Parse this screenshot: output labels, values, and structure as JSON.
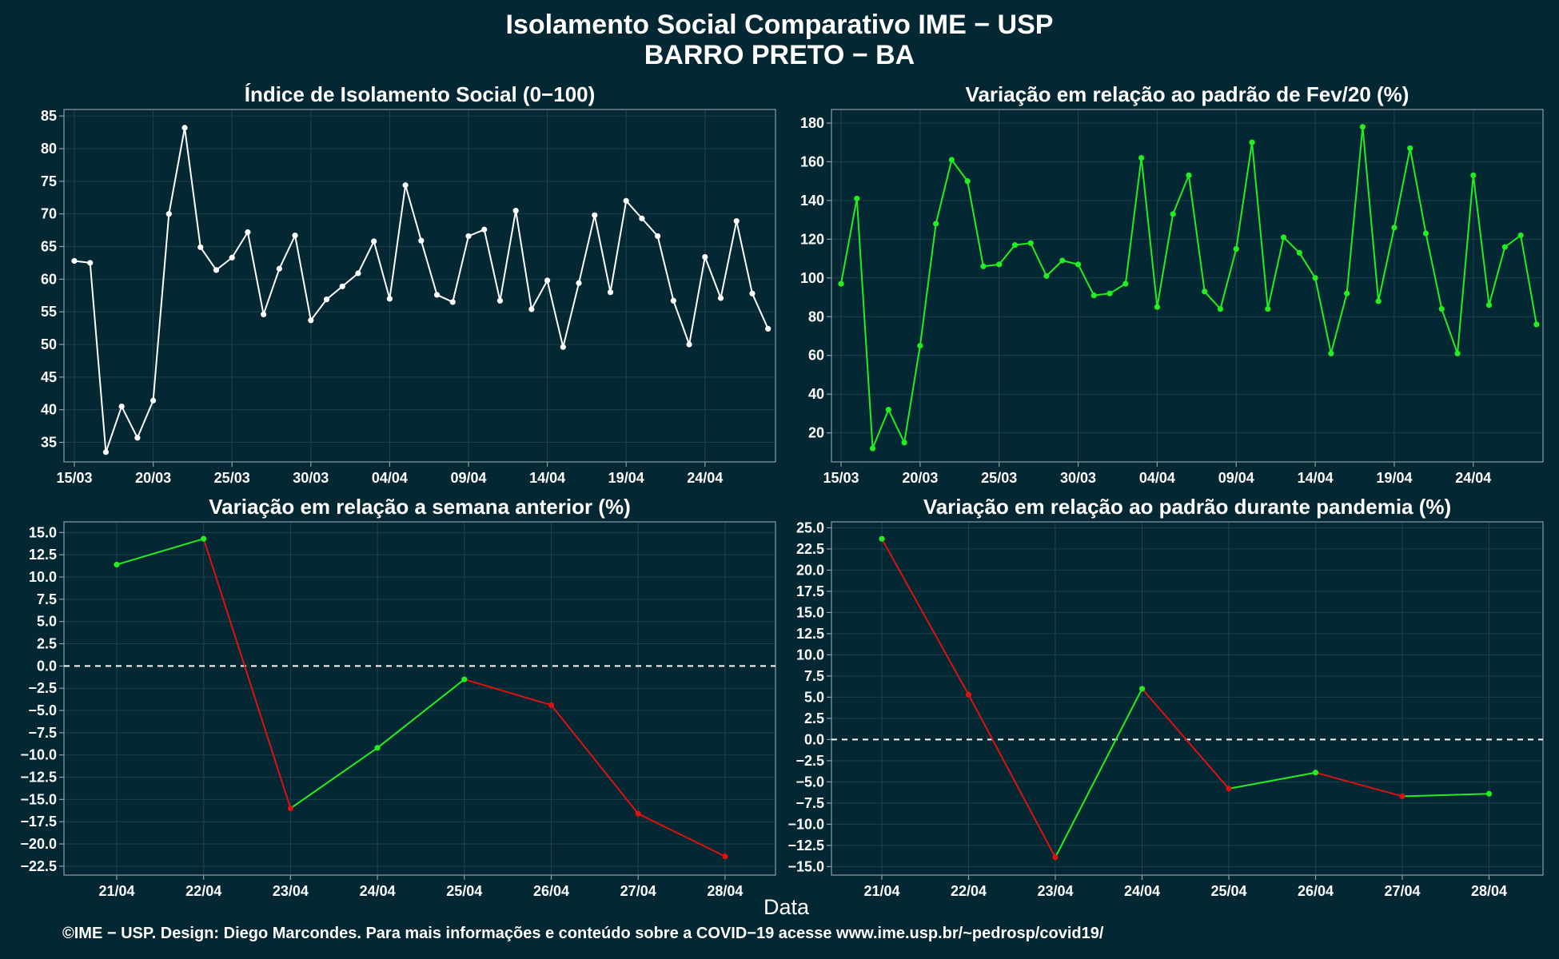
{
  "header": {
    "title": "Isolamento Social Comparativo IME − USP",
    "subtitle": "BARRO PRETO − BA"
  },
  "x_axis_title": "Data",
  "footer": "©IME − USP. Design: Diego Marcondes. Para mais informações e conteúdo sobre a COVID−19 acesse www.ime.usp.br/~pedrosp/covid19/",
  "colors": {
    "background": "#042833",
    "axis": "#8a9ea4",
    "grid": "#1d3f49",
    "white_series": "#ffffff",
    "increase": "#22ee22",
    "decrease": "#dd1111"
  },
  "chart_data": [
    {
      "id": "indice",
      "type": "line",
      "title": "Índice de Isolamento Social (0−100)",
      "x": [
        "15/03",
        "16/03",
        "17/03",
        "18/03",
        "19/03",
        "20/03",
        "21/03",
        "22/03",
        "23/03",
        "24/03",
        "25/03",
        "26/03",
        "27/03",
        "28/03",
        "29/03",
        "30/03",
        "31/03",
        "01/04",
        "02/04",
        "03/04",
        "04/04",
        "05/04",
        "06/04",
        "07/04",
        "08/04",
        "09/04",
        "10/04",
        "11/04",
        "12/04",
        "13/04",
        "14/04",
        "15/04",
        "16/04",
        "17/04",
        "18/04",
        "19/04",
        "20/04",
        "21/04",
        "22/04",
        "23/04",
        "24/04",
        "25/04",
        "26/04",
        "27/04",
        "28/04"
      ],
      "values": [
        62.8,
        62.5,
        33.5,
        40.5,
        35.7,
        41.4,
        70,
        83.2,
        64.9,
        61.4,
        63.3,
        67.2,
        54.6,
        61.6,
        66.7,
        53.7,
        56.9,
        58.9,
        60.9,
        65.8,
        57,
        74.4,
        65.9,
        57.6,
        56.5,
        66.6,
        67.6,
        56.7,
        70.5,
        55.4,
        59.8,
        49.6,
        59.4,
        69.8,
        58,
        72,
        69.3,
        66.6,
        56.7,
        50,
        63.4,
        57.1,
        68.9,
        57.8,
        52.4
      ],
      "x_tick_labels": [
        "15/03",
        "20/03",
        "25/03",
        "30/03",
        "04/04",
        "09/04",
        "14/04",
        "19/04",
        "24/04"
      ],
      "y_ticks": [
        35,
        40,
        45,
        50,
        55,
        60,
        65,
        70,
        75,
        80,
        85
      ],
      "ylim": [
        32,
        86
      ],
      "color": "#ffffff",
      "grid": true
    },
    {
      "id": "fev20",
      "type": "line",
      "title": "Variação em relação ao padrão de Fev/20 (%)",
      "x": [
        "15/03",
        "16/03",
        "17/03",
        "18/03",
        "19/03",
        "20/03",
        "21/03",
        "22/03",
        "23/03",
        "24/03",
        "25/03",
        "26/03",
        "27/03",
        "28/03",
        "29/03",
        "30/03",
        "31/03",
        "01/04",
        "02/04",
        "03/04",
        "04/04",
        "05/04",
        "06/04",
        "07/04",
        "08/04",
        "09/04",
        "10/04",
        "11/04",
        "12/04",
        "13/04",
        "14/04",
        "15/04",
        "16/04",
        "17/04",
        "18/04",
        "19/04",
        "20/04",
        "21/04",
        "22/04",
        "23/04",
        "24/04",
        "25/04",
        "26/04",
        "27/04",
        "28/04"
      ],
      "values": [
        97,
        141,
        12,
        32,
        15,
        65,
        128,
        161,
        150,
        106,
        107,
        117,
        118,
        101,
        109,
        107,
        91,
        92,
        97,
        162,
        85,
        133,
        153,
        93,
        84,
        115,
        170,
        84,
        121,
        113,
        100,
        61,
        92,
        178,
        88,
        126,
        167,
        123,
        84,
        61,
        153,
        86,
        116,
        122,
        76
      ],
      "x_tick_labels": [
        "15/03",
        "20/03",
        "25/03",
        "30/03",
        "04/04",
        "09/04",
        "14/04",
        "19/04",
        "24/04"
      ],
      "y_ticks": [
        20,
        40,
        60,
        80,
        100,
        120,
        140,
        160,
        180
      ],
      "ylim": [
        5,
        187
      ],
      "color": "#22ee22",
      "grid": true
    },
    {
      "id": "semana",
      "type": "line",
      "title": "Variação em relação a semana anterior (%)",
      "x": [
        "21/04",
        "22/04",
        "23/04",
        "24/04",
        "25/04",
        "26/04",
        "27/04",
        "28/04"
      ],
      "values": [
        11.4,
        14.3,
        -16,
        -9.2,
        -1.5,
        -4.4,
        -16.6,
        -21.4
      ],
      "y_ticks": [
        -22.5,
        -20,
        -17.5,
        -15,
        -12.5,
        -10,
        -7.5,
        -5,
        -2.5,
        0,
        2.5,
        5,
        7.5,
        10,
        12.5,
        15
      ],
      "y_tick_labels": [
        "−22.5",
        "−20.0",
        "−17.5",
        "−15.0",
        "−12.5",
        "−10.0",
        "−7.5",
        "−5.0",
        "−2.5",
        "0.0",
        "2.5",
        "5.0",
        "7.5",
        "10.0",
        "12.5",
        "15.0"
      ],
      "ylim": [
        -23.5,
        16.2
      ],
      "zero_line": true,
      "grid": true
    },
    {
      "id": "pandemia",
      "type": "line",
      "title": "Variação em relação ao padrão durante pandemia (%)",
      "x": [
        "21/04",
        "22/04",
        "23/04",
        "24/04",
        "25/04",
        "26/04",
        "27/04",
        "28/04"
      ],
      "values": [
        23.7,
        5.3,
        -13.9,
        6,
        -5.8,
        -3.9,
        -6.7,
        -6.4
      ],
      "y_ticks": [
        -15,
        -12.5,
        -10,
        -7.5,
        -5,
        -2.5,
        0,
        2.5,
        5,
        7.5,
        10,
        12.5,
        15,
        17.5,
        20,
        22.5,
        25
      ],
      "y_tick_labels": [
        "−15.0",
        "−12.5",
        "−10.0",
        "−7.5",
        "−5.0",
        "−2.5",
        "0.0",
        "2.5",
        "5.0",
        "7.5",
        "10.0",
        "12.5",
        "15.0",
        "17.5",
        "20.0",
        "22.5",
        "25.0"
      ],
      "ylim": [
        -16,
        25.7
      ],
      "zero_line": true,
      "grid": true
    }
  ]
}
